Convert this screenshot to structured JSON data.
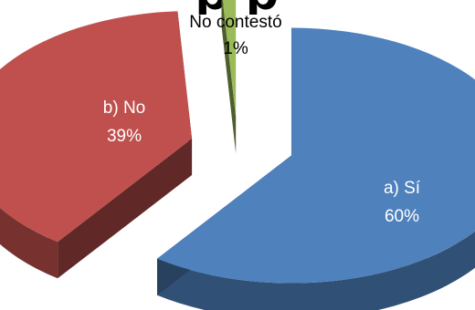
{
  "chart_data": {
    "type": "pie",
    "title": "p                   p",
    "slices": [
      {
        "label": "a) Sí",
        "percent_label": "60%",
        "value": 60,
        "color": "#4f81bd"
      },
      {
        "label": "b) No",
        "percent_label": "39%",
        "value": 39,
        "color": "#c0504d"
      },
      {
        "label": "No contestó",
        "percent_label": "1%",
        "value": 1,
        "color": "#9bbb59"
      }
    ],
    "style": "3d-exploded",
    "legend": "none"
  }
}
